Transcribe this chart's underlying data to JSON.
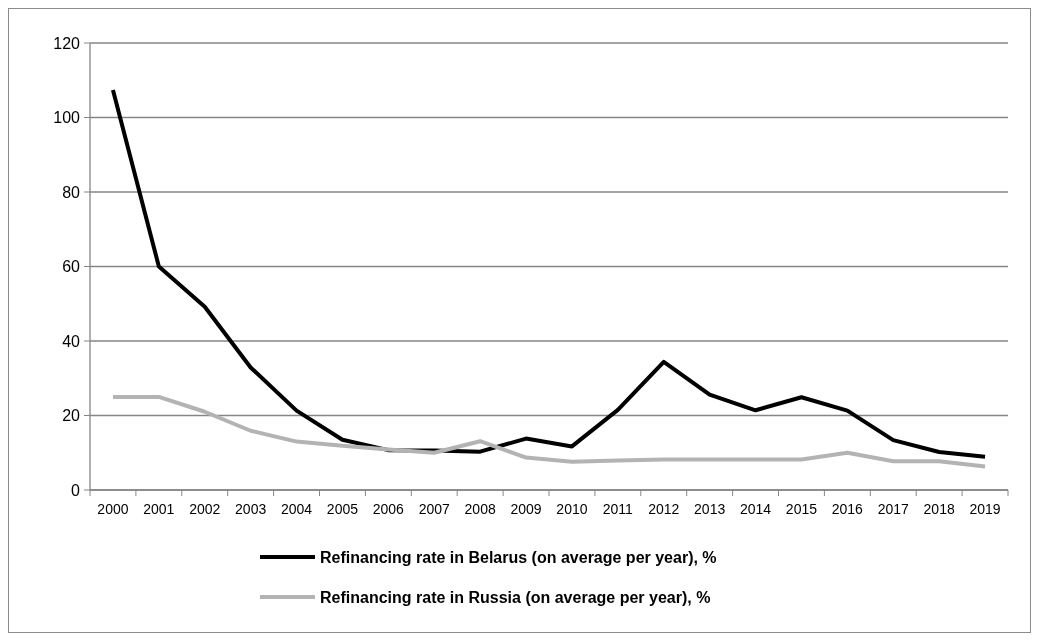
{
  "chart_data": {
    "type": "line",
    "categories": [
      "2000",
      "2001",
      "2002",
      "2003",
      "2004",
      "2005",
      "2006",
      "2007",
      "2008",
      "2009",
      "2010",
      "2011",
      "2012",
      "2013",
      "2014",
      "2015",
      "2016",
      "2017",
      "2018",
      "2019"
    ],
    "series": [
      {
        "name": "Refinancing rate in Belarus (on average per year), %",
        "color": "#000000",
        "values": [
          107.4,
          60,
          49.2,
          32.9,
          21.3,
          13.5,
          10.7,
          10.6,
          10.3,
          13.8,
          11.7,
          21.5,
          34.4,
          25.6,
          21.4,
          24.9,
          21.3,
          13.4,
          10.2,
          8.9
        ]
      },
      {
        "name": "Refinancing rate in Russia (on average per year), %",
        "color": "#b3b3b3",
        "values": [
          25,
          25,
          21,
          15.9,
          13,
          11.9,
          10.9,
          10,
          13.1,
          8.7,
          7.6,
          7.9,
          8.2,
          8.2,
          8.2,
          8.2,
          10,
          7.7,
          7.7,
          6.3
        ]
      }
    ],
    "ylim": [
      0,
      120
    ],
    "yticks": [
      0,
      20,
      40,
      60,
      80,
      100,
      120
    ],
    "grid": "y",
    "legend": "bottom",
    "marker": "none",
    "line_style": "solid"
  }
}
